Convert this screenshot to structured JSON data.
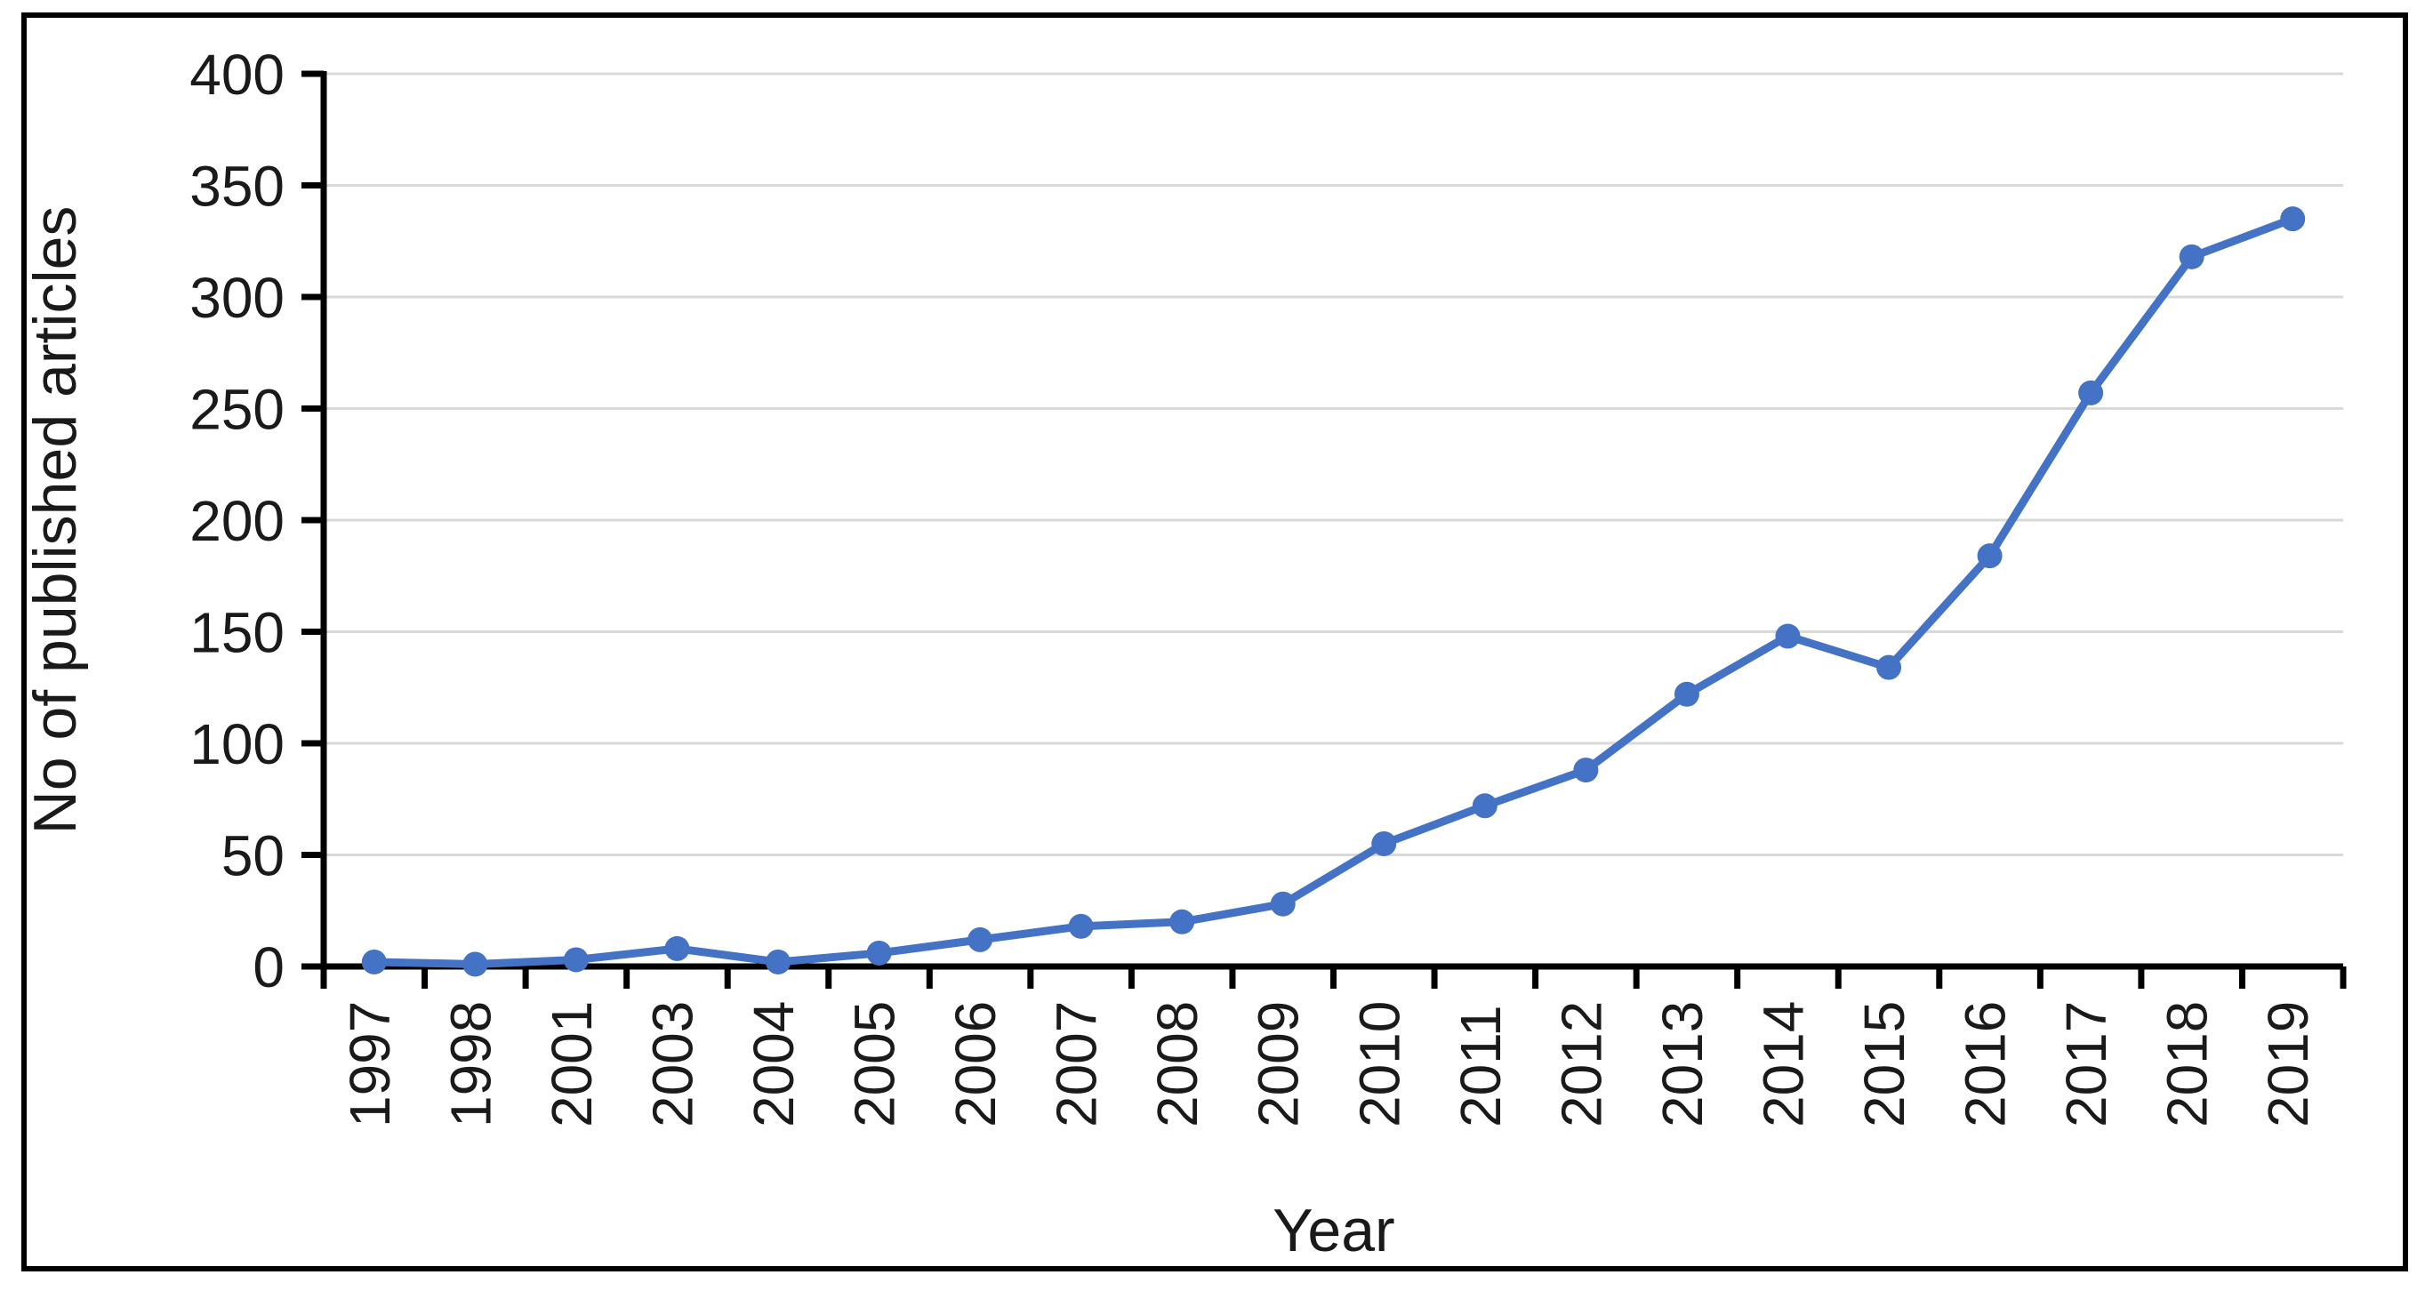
{
  "chart_data": {
    "type": "line",
    "title": "",
    "xlabel": "Year",
    "ylabel": "No of published articles",
    "categories": [
      "1997",
      "1998",
      "2001",
      "2003",
      "2004",
      "2005",
      "2006",
      "2007",
      "2008",
      "2009",
      "2010",
      "2011",
      "2012",
      "2013",
      "2014",
      "2015",
      "2016",
      "2017",
      "2018",
      "2019"
    ],
    "values": [
      2,
      1,
      3,
      8,
      2,
      6,
      12,
      18,
      20,
      28,
      55,
      72,
      88,
      122,
      148,
      134,
      184,
      257,
      318,
      335
    ],
    "ylim": [
      0,
      400
    ],
    "ytick_step": 50,
    "yticks": [
      0,
      50,
      100,
      150,
      200,
      250,
      300,
      350,
      400
    ],
    "grid": "horizontal",
    "legend": "none",
    "line_color": "#4472C4",
    "marker": "circle",
    "gridline_color": "#d9d9d9",
    "axis_color": "#000000",
    "text_color": "#1a1a1a"
  }
}
